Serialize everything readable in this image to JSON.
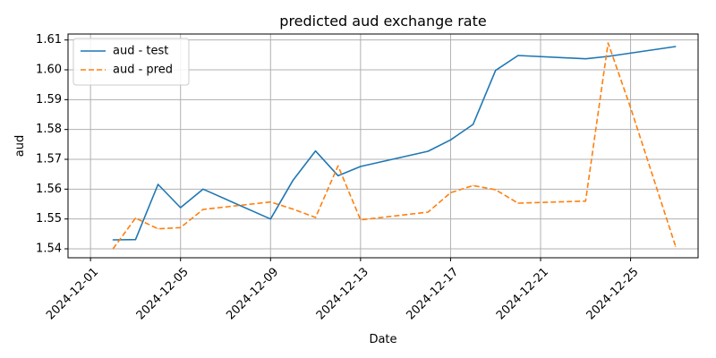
{
  "chart_data": {
    "type": "line",
    "title": "predicted aud exchange rate",
    "xlabel": "Date",
    "ylabel": "aud",
    "xlim": [
      "2024-11-30",
      "2024-12-28"
    ],
    "ylim": [
      1.537,
      1.612
    ],
    "x_ticks": [
      "2024-12-01",
      "2024-12-05",
      "2024-12-09",
      "2024-12-13",
      "2024-12-17",
      "2024-12-21",
      "2024-12-25"
    ],
    "y_ticks": [
      1.54,
      1.55,
      1.56,
      1.57,
      1.58,
      1.59,
      1.6,
      1.61
    ],
    "y_tick_labels": [
      "1.54",
      "1.55",
      "1.56",
      "1.57",
      "1.58",
      "1.59",
      "1.60",
      "1.61"
    ],
    "grid": true,
    "legend_position": "top-left",
    "series": [
      {
        "name": "aud - test",
        "color": "#1f77b4",
        "style": "solid",
        "x": [
          "2024-12-02",
          "2024-12-03",
          "2024-12-04",
          "2024-12-05",
          "2024-12-06",
          "2024-12-09",
          "2024-12-10",
          "2024-12-11",
          "2024-12-12",
          "2024-12-13",
          "2024-12-16",
          "2024-12-17",
          "2024-12-18",
          "2024-12-19",
          "2024-12-20",
          "2024-12-23",
          "2024-12-24",
          "2024-12-27"
        ],
        "y": [
          1.543,
          1.5431,
          1.5616,
          1.5538,
          1.56,
          1.55,
          1.563,
          1.5728,
          1.5645,
          1.5676,
          1.5727,
          1.5765,
          1.5817,
          1.5998,
          1.6048,
          1.6037,
          1.6045,
          1.6078
        ]
      },
      {
        "name": "aud - pred",
        "color": "#ff7f0e",
        "style": "dashed",
        "x": [
          "2024-12-02",
          "2024-12-03",
          "2024-12-04",
          "2024-12-05",
          "2024-12-06",
          "2024-12-09",
          "2024-12-10",
          "2024-12-11",
          "2024-12-12",
          "2024-12-13",
          "2024-12-16",
          "2024-12-17",
          "2024-12-18",
          "2024-12-19",
          "2024-12-20",
          "2024-12-23",
          "2024-12-24",
          "2024-12-25",
          "2024-12-27"
        ],
        "y": [
          1.54,
          1.5503,
          1.5467,
          1.5471,
          1.5532,
          1.5557,
          1.5533,
          1.5505,
          1.5678,
          1.5497,
          1.5523,
          1.5588,
          1.5612,
          1.5598,
          1.5553,
          1.556,
          1.609,
          1.5873,
          1.5408
        ]
      }
    ]
  }
}
